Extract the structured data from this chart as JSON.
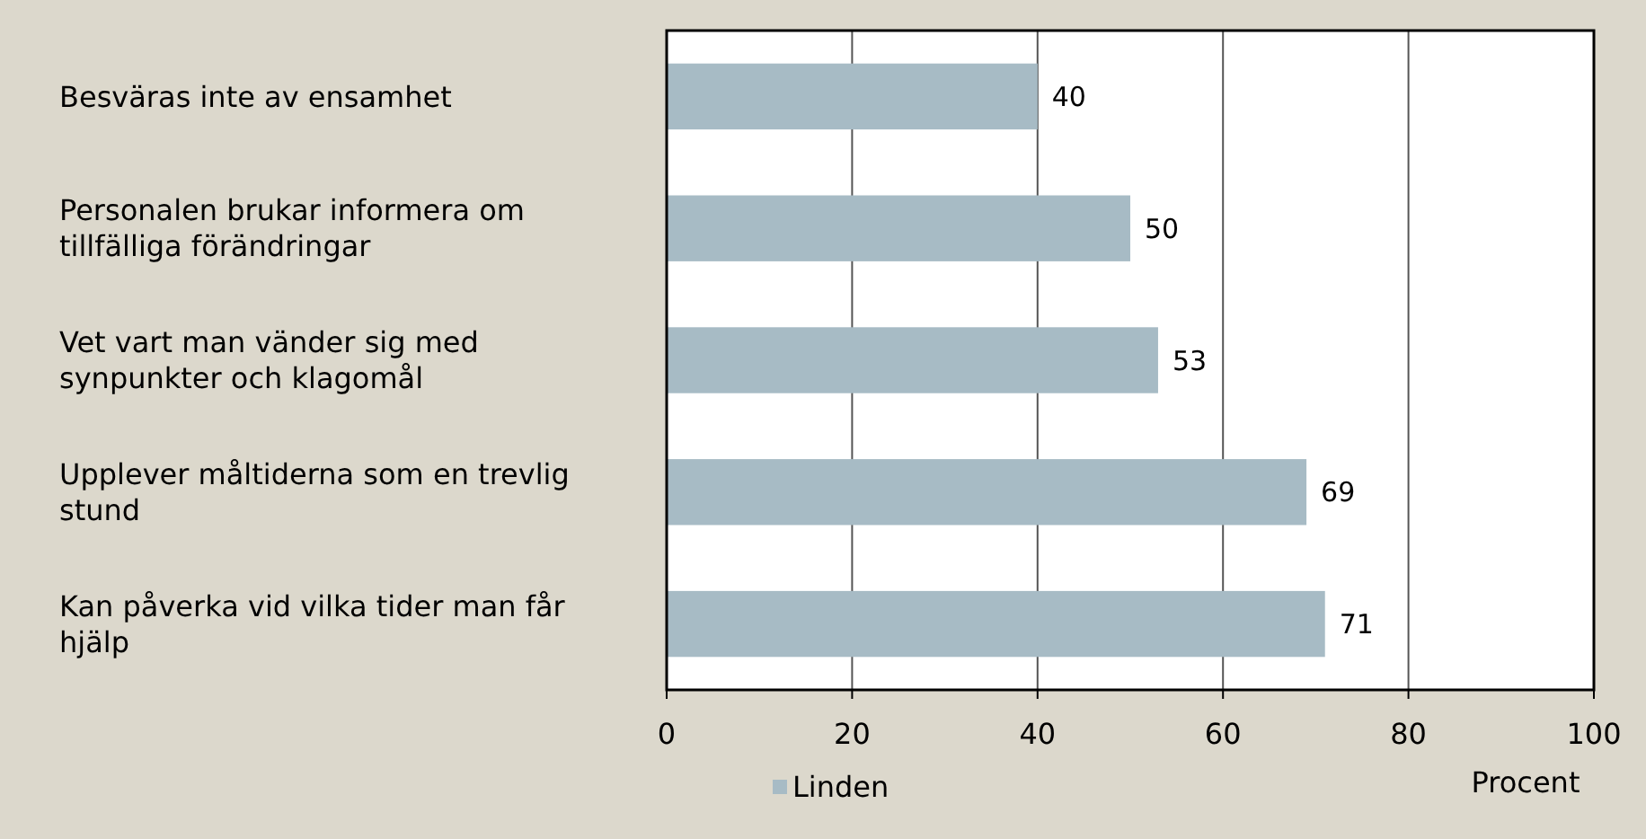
{
  "chart_data": {
    "type": "bar",
    "orientation": "horizontal",
    "categories": [
      "Besväras inte av ensamhet",
      "Personalen brukar informera om tillfälliga förändringar",
      "Vet vart man vänder sig med synpunkter och klagomål",
      "Upplever måltiderna som en trevlig stund",
      "Kan påverka vid vilka tider man får hjälp"
    ],
    "series": [
      {
        "name": "Linden",
        "color": "#a7bbc5",
        "values": [
          40,
          50,
          53,
          69,
          71
        ]
      }
    ],
    "xlim": [
      0,
      100
    ],
    "xticks": [
      0,
      20,
      40,
      60,
      80,
      100
    ],
    "xlabel": "Procent",
    "grid": "x",
    "data_labels": true,
    "legend": "bottom"
  }
}
